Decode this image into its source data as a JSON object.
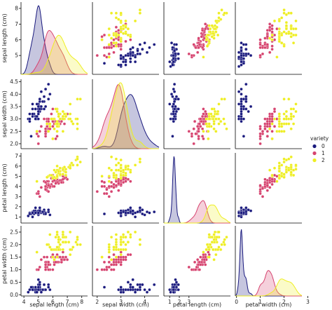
{
  "chart_data": {
    "type": "scatter",
    "subtype": "pairplot",
    "variables": [
      "sepal length (cm)",
      "sepal width (cm)",
      "petal length (cm)",
      "petal width (cm)"
    ],
    "axis_limits": {
      "sepal length (cm)": [
        3.8,
        8.4
      ],
      "sepal width (cm)": [
        1.8,
        4.6
      ],
      "petal length (cm)": [
        0.4,
        7.3
      ],
      "petal width (cm)": [
        -0.05,
        2.75
      ]
    },
    "ticks": {
      "sepal length (cm)": [
        4,
        5,
        6,
        7,
        8
      ],
      "sepal width (cm)": [
        2,
        3,
        4
      ],
      "petal length (cm)": [
        1,
        2,
        3
      ],
      "petal width (cm)": [
        0,
        1,
        2,
        3
      ]
    },
    "y_ticks": {
      "sepal length (cm)": [
        "5",
        "6",
        "7",
        "8"
      ],
      "sepal width (cm)": [
        "2.0",
        "2.5",
        "3.0",
        "3.5",
        "4.0",
        "4.5"
      ],
      "petal length (cm)": [
        "1",
        "2",
        "3",
        "4",
        "5",
        "6",
        "7"
      ],
      "petal width (cm)": [
        "0.0",
        "0.5",
        "1.0",
        "1.5",
        "2.0",
        "2.5"
      ]
    },
    "diagonal": "kde",
    "legend": {
      "title": "variety",
      "position": "right",
      "labels": [
        "0",
        "1",
        "2"
      ]
    },
    "series": [
      {
        "name": "0",
        "color": "#1a1a7e",
        "points": [
          [
            5.1,
            3.5,
            1.4,
            0.2
          ],
          [
            4.9,
            3.0,
            1.4,
            0.2
          ],
          [
            4.7,
            3.2,
            1.3,
            0.2
          ],
          [
            4.6,
            3.1,
            1.5,
            0.2
          ],
          [
            5.0,
            3.6,
            1.4,
            0.2
          ],
          [
            5.4,
            3.9,
            1.7,
            0.4
          ],
          [
            4.6,
            3.4,
            1.4,
            0.3
          ],
          [
            5.0,
            3.4,
            1.5,
            0.2
          ],
          [
            4.4,
            2.9,
            1.4,
            0.2
          ],
          [
            4.9,
            3.1,
            1.5,
            0.1
          ],
          [
            5.4,
            3.7,
            1.5,
            0.2
          ],
          [
            4.8,
            3.4,
            1.6,
            0.2
          ],
          [
            4.8,
            3.0,
            1.4,
            0.1
          ],
          [
            4.3,
            3.0,
            1.1,
            0.1
          ],
          [
            5.8,
            4.0,
            1.2,
            0.2
          ],
          [
            5.7,
            4.4,
            1.5,
            0.4
          ],
          [
            5.4,
            3.9,
            1.3,
            0.4
          ],
          [
            5.1,
            3.5,
            1.4,
            0.3
          ],
          [
            5.7,
            3.8,
            1.7,
            0.3
          ],
          [
            5.1,
            3.8,
            1.5,
            0.3
          ],
          [
            5.4,
            3.4,
            1.7,
            0.2
          ],
          [
            5.1,
            3.7,
            1.5,
            0.4
          ],
          [
            4.6,
            3.6,
            1.0,
            0.2
          ],
          [
            5.1,
            3.3,
            1.7,
            0.5
          ],
          [
            4.8,
            3.4,
            1.9,
            0.2
          ],
          [
            5.0,
            3.0,
            1.6,
            0.2
          ],
          [
            5.0,
            3.4,
            1.6,
            0.4
          ],
          [
            5.2,
            3.5,
            1.5,
            0.2
          ],
          [
            5.2,
            3.4,
            1.4,
            0.2
          ],
          [
            4.7,
            3.2,
            1.6,
            0.2
          ],
          [
            4.8,
            3.1,
            1.6,
            0.2
          ],
          [
            5.4,
            3.4,
            1.5,
            0.4
          ],
          [
            5.2,
            4.1,
            1.5,
            0.1
          ],
          [
            5.5,
            4.2,
            1.4,
            0.2
          ],
          [
            4.9,
            3.1,
            1.5,
            0.2
          ],
          [
            5.0,
            3.2,
            1.2,
            0.2
          ],
          [
            5.5,
            3.5,
            1.3,
            0.2
          ],
          [
            4.9,
            3.6,
            1.4,
            0.1
          ],
          [
            4.4,
            3.0,
            1.3,
            0.2
          ],
          [
            5.1,
            3.4,
            1.5,
            0.2
          ],
          [
            5.0,
            3.5,
            1.3,
            0.3
          ],
          [
            4.5,
            2.3,
            1.3,
            0.3
          ],
          [
            4.4,
            3.2,
            1.3,
            0.2
          ],
          [
            5.0,
            3.5,
            1.6,
            0.6
          ],
          [
            5.1,
            3.8,
            1.9,
            0.4
          ],
          [
            4.8,
            3.0,
            1.4,
            0.3
          ],
          [
            5.1,
            3.8,
            1.6,
            0.2
          ],
          [
            4.6,
            3.2,
            1.4,
            0.2
          ],
          [
            5.3,
            3.7,
            1.5,
            0.2
          ],
          [
            5.0,
            3.3,
            1.4,
            0.2
          ]
        ]
      },
      {
        "name": "1",
        "color": "#d6436f",
        "points": [
          [
            7.0,
            3.2,
            4.7,
            1.4
          ],
          [
            6.4,
            3.2,
            4.5,
            1.5
          ],
          [
            6.9,
            3.1,
            4.9,
            1.5
          ],
          [
            5.5,
            2.3,
            4.0,
            1.3
          ],
          [
            6.5,
            2.8,
            4.6,
            1.5
          ],
          [
            5.7,
            2.8,
            4.5,
            1.3
          ],
          [
            6.3,
            3.3,
            4.7,
            1.6
          ],
          [
            4.9,
            2.4,
            3.3,
            1.0
          ],
          [
            6.6,
            2.9,
            4.6,
            1.3
          ],
          [
            5.2,
            2.7,
            3.9,
            1.4
          ],
          [
            5.0,
            2.0,
            3.5,
            1.0
          ],
          [
            5.9,
            3.0,
            4.2,
            1.5
          ],
          [
            6.0,
            2.2,
            4.0,
            1.0
          ],
          [
            6.1,
            2.9,
            4.7,
            1.4
          ],
          [
            5.6,
            2.9,
            3.6,
            1.3
          ],
          [
            6.7,
            3.1,
            4.4,
            1.4
          ],
          [
            5.6,
            3.0,
            4.5,
            1.5
          ],
          [
            5.8,
            2.7,
            4.1,
            1.0
          ],
          [
            6.2,
            2.2,
            4.5,
            1.5
          ],
          [
            5.6,
            2.5,
            3.9,
            1.1
          ],
          [
            5.9,
            3.2,
            4.8,
            1.8
          ],
          [
            6.1,
            2.8,
            4.0,
            1.3
          ],
          [
            6.3,
            2.5,
            4.9,
            1.5
          ],
          [
            6.1,
            2.8,
            4.7,
            1.2
          ],
          [
            6.4,
            2.9,
            4.3,
            1.3
          ],
          [
            6.6,
            3.0,
            4.4,
            1.4
          ],
          [
            6.8,
            2.8,
            4.8,
            1.4
          ],
          [
            6.7,
            3.0,
            5.0,
            1.7
          ],
          [
            6.0,
            2.9,
            4.5,
            1.5
          ],
          [
            5.7,
            2.6,
            3.5,
            1.0
          ],
          [
            5.5,
            2.4,
            3.8,
            1.1
          ],
          [
            5.5,
            2.4,
            3.7,
            1.0
          ],
          [
            5.8,
            2.7,
            3.9,
            1.2
          ],
          [
            6.0,
            2.7,
            5.1,
            1.6
          ],
          [
            5.4,
            3.0,
            4.5,
            1.5
          ],
          [
            6.0,
            3.4,
            4.5,
            1.6
          ],
          [
            6.7,
            3.1,
            4.7,
            1.5
          ],
          [
            6.3,
            2.3,
            4.4,
            1.3
          ],
          [
            5.6,
            3.0,
            4.1,
            1.3
          ],
          [
            5.5,
            2.5,
            4.0,
            1.3
          ],
          [
            5.5,
            2.6,
            4.4,
            1.2
          ],
          [
            6.1,
            3.0,
            4.6,
            1.4
          ],
          [
            5.8,
            2.6,
            4.0,
            1.2
          ],
          [
            5.0,
            2.3,
            3.3,
            1.0
          ],
          [
            5.6,
            2.7,
            4.2,
            1.3
          ],
          [
            5.7,
            3.0,
            4.2,
            1.2
          ],
          [
            5.7,
            2.9,
            4.2,
            1.3
          ],
          [
            6.2,
            2.9,
            4.3,
            1.3
          ],
          [
            5.1,
            2.5,
            3.0,
            1.1
          ],
          [
            5.7,
            2.8,
            4.1,
            1.3
          ]
        ]
      },
      {
        "name": "2",
        "color": "#eeee22",
        "points": [
          [
            6.3,
            3.3,
            6.0,
            2.5
          ],
          [
            5.8,
            2.7,
            5.1,
            1.9
          ],
          [
            7.1,
            3.0,
            5.9,
            2.1
          ],
          [
            6.3,
            2.9,
            5.6,
            1.8
          ],
          [
            6.5,
            3.0,
            5.8,
            2.2
          ],
          [
            7.6,
            3.0,
            6.6,
            2.1
          ],
          [
            4.9,
            2.5,
            4.5,
            1.7
          ],
          [
            7.3,
            2.9,
            6.3,
            1.8
          ],
          [
            6.7,
            2.5,
            5.8,
            1.8
          ],
          [
            7.2,
            3.6,
            6.1,
            2.5
          ],
          [
            6.5,
            3.2,
            5.1,
            2.0
          ],
          [
            6.4,
            2.7,
            5.3,
            1.9
          ],
          [
            6.8,
            3.0,
            5.5,
            2.1
          ],
          [
            5.7,
            2.5,
            5.0,
            2.0
          ],
          [
            5.8,
            2.8,
            5.1,
            2.4
          ],
          [
            6.4,
            3.2,
            5.3,
            2.3
          ],
          [
            6.5,
            3.0,
            5.5,
            1.8
          ],
          [
            7.7,
            3.8,
            6.7,
            2.2
          ],
          [
            7.7,
            2.6,
            6.9,
            2.3
          ],
          [
            6.0,
            2.2,
            5.0,
            1.5
          ],
          [
            6.9,
            3.2,
            5.7,
            2.3
          ],
          [
            5.6,
            2.8,
            4.9,
            2.0
          ],
          [
            7.7,
            2.8,
            6.7,
            2.0
          ],
          [
            6.3,
            2.7,
            4.9,
            1.8
          ],
          [
            6.7,
            3.3,
            5.7,
            2.1
          ],
          [
            7.2,
            3.2,
            6.0,
            1.8
          ],
          [
            6.2,
            2.8,
            4.8,
            1.8
          ],
          [
            6.1,
            3.0,
            4.9,
            1.8
          ],
          [
            6.4,
            2.8,
            5.6,
            2.1
          ],
          [
            7.2,
            3.0,
            5.8,
            1.6
          ],
          [
            7.4,
            2.8,
            6.1,
            1.9
          ],
          [
            7.9,
            3.8,
            6.4,
            2.0
          ],
          [
            6.4,
            2.8,
            5.6,
            2.2
          ],
          [
            6.3,
            2.8,
            5.1,
            1.5
          ],
          [
            6.1,
            2.6,
            5.6,
            1.4
          ],
          [
            7.7,
            3.0,
            6.1,
            2.3
          ],
          [
            6.3,
            3.4,
            5.6,
            2.4
          ],
          [
            6.4,
            3.1,
            5.5,
            1.8
          ],
          [
            6.0,
            3.0,
            4.8,
            1.8
          ],
          [
            6.9,
            3.1,
            5.4,
            2.1
          ],
          [
            6.7,
            3.1,
            5.6,
            2.4
          ],
          [
            6.9,
            3.1,
            5.1,
            2.3
          ],
          [
            5.8,
            2.7,
            5.1,
            1.9
          ],
          [
            6.8,
            3.2,
            5.9,
            2.3
          ],
          [
            6.7,
            3.3,
            5.7,
            2.5
          ],
          [
            6.7,
            3.0,
            5.2,
            2.3
          ],
          [
            6.3,
            2.5,
            5.0,
            1.9
          ],
          [
            6.5,
            3.0,
            5.2,
            2.0
          ],
          [
            6.2,
            3.4,
            5.4,
            2.3
          ],
          [
            5.9,
            3.0,
            5.1,
            1.8
          ]
        ]
      }
    ]
  }
}
